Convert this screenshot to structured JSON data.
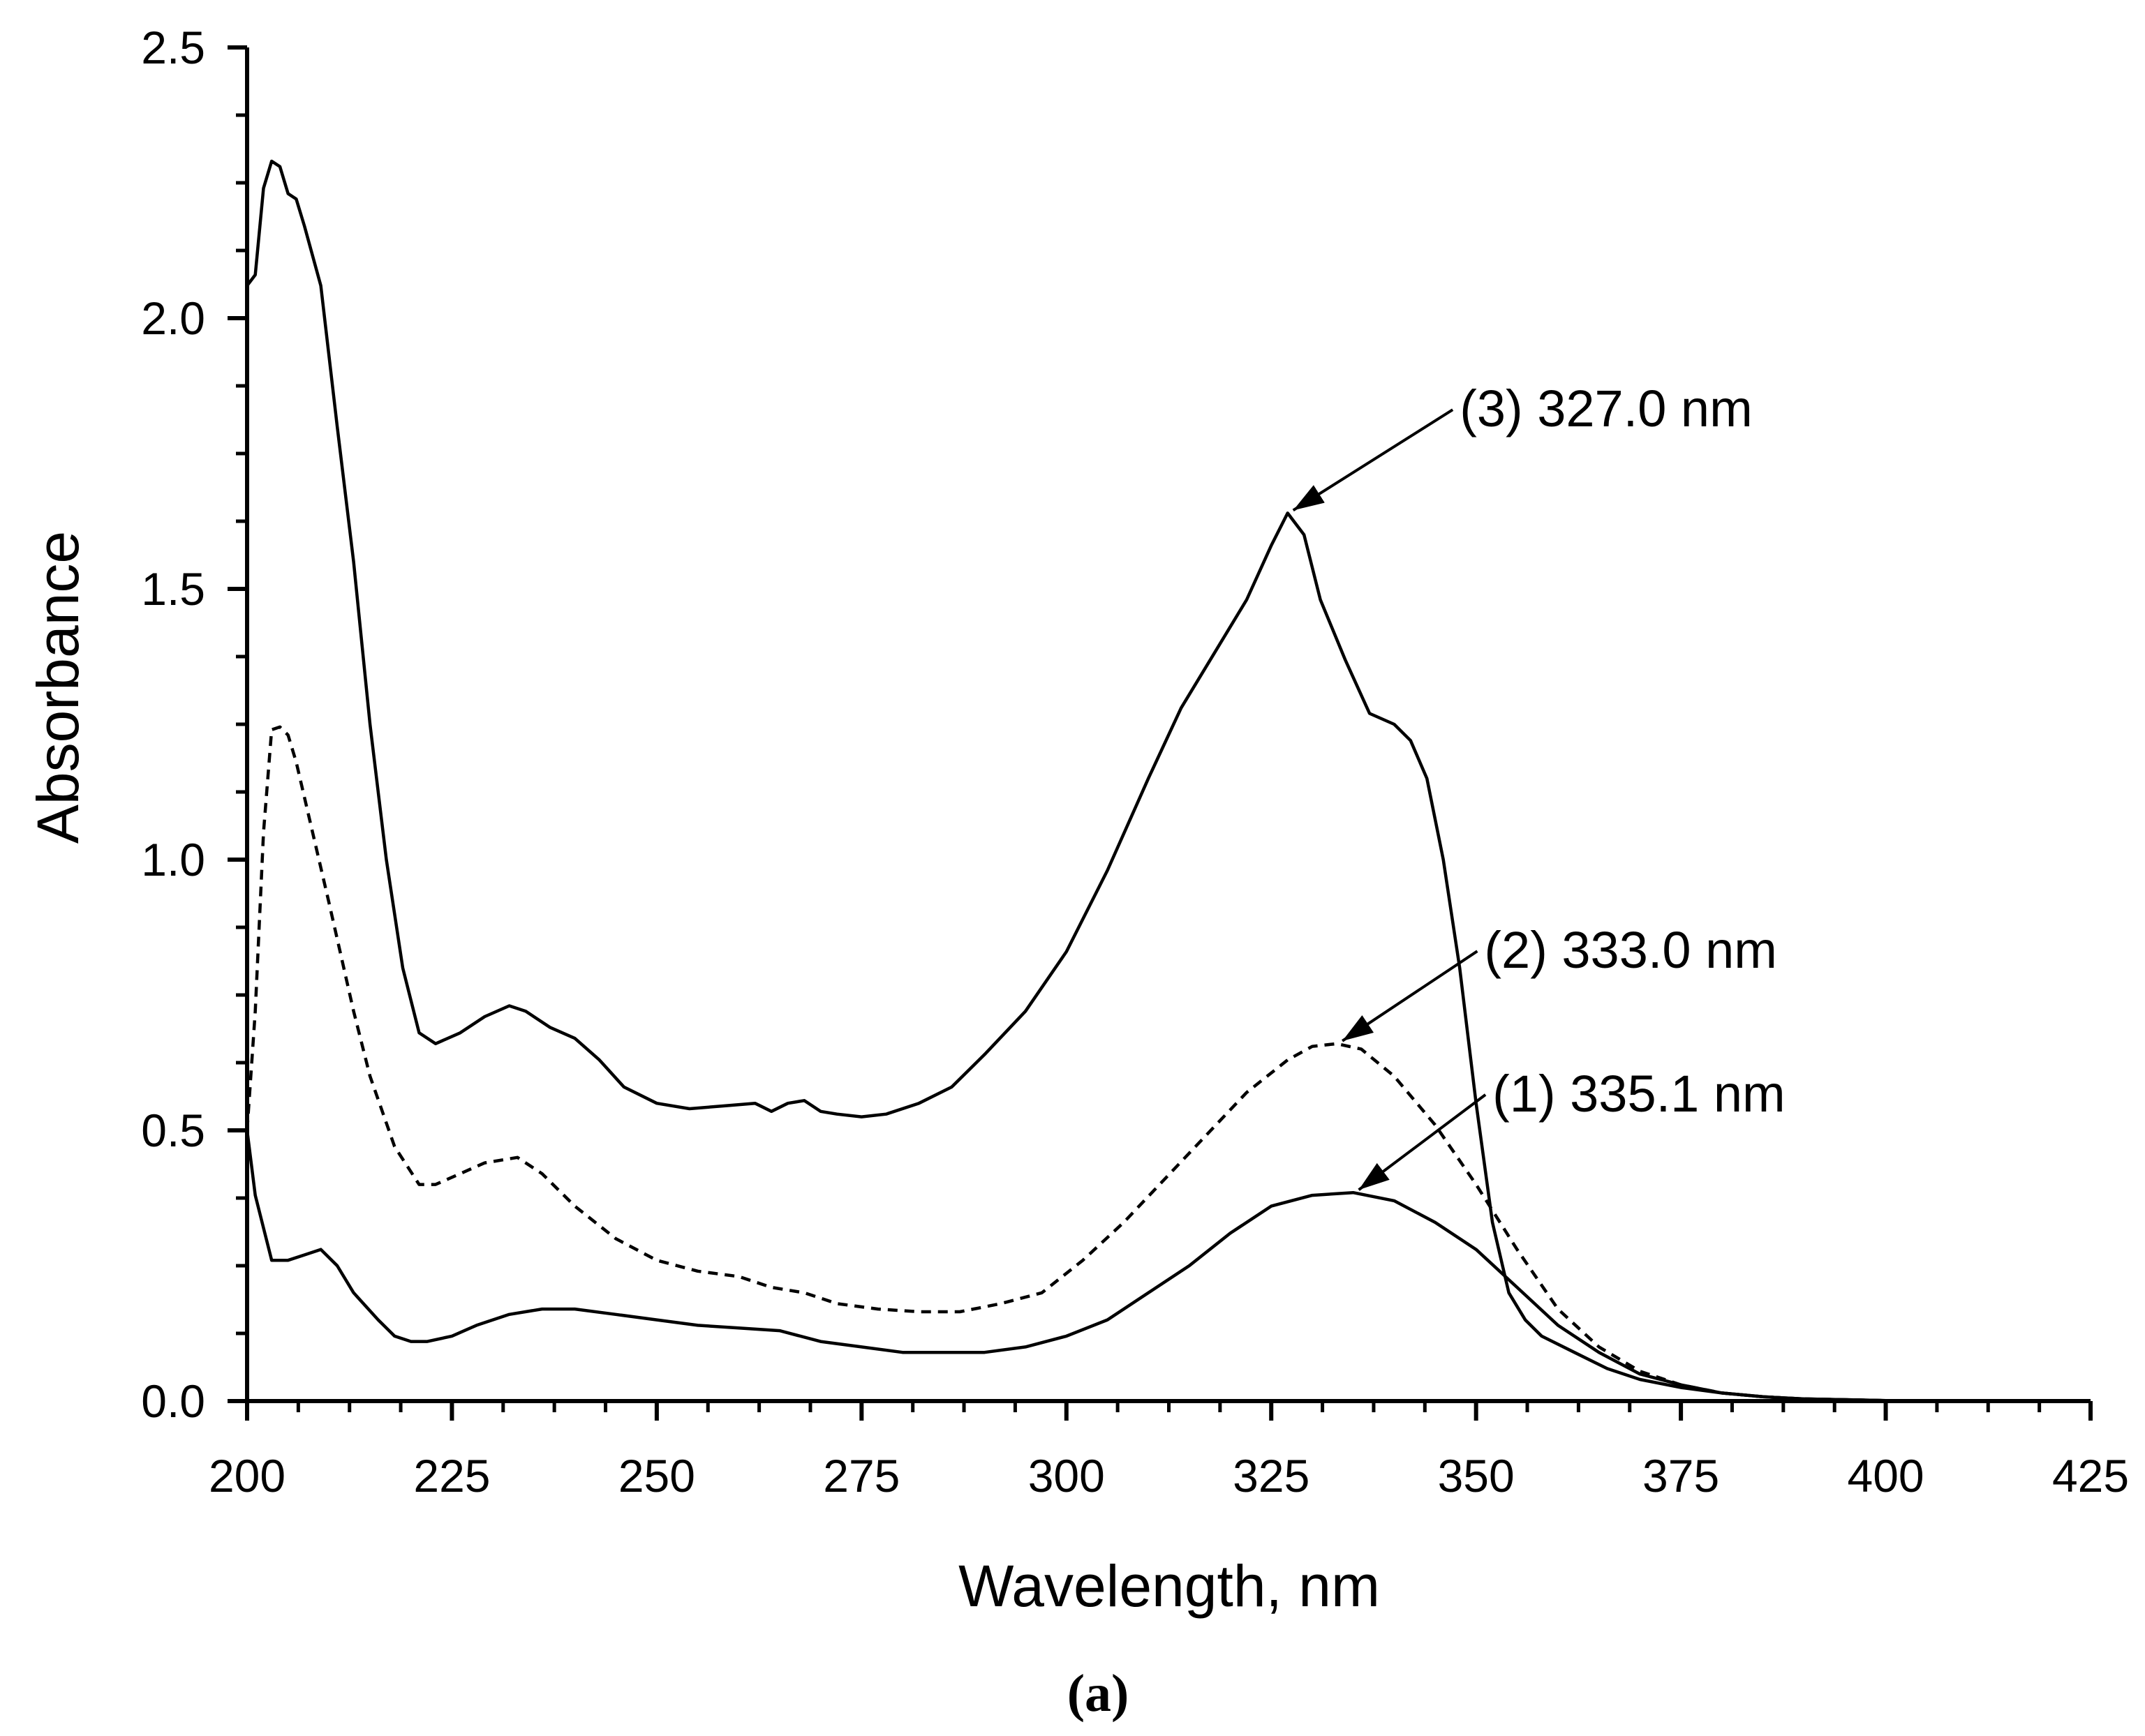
{
  "chart_data": {
    "type": "line",
    "title": "",
    "xlabel": "Wavelength, nm",
    "ylabel": "Absorbance",
    "xlim": [
      200,
      425
    ],
    "ylim": [
      0.0,
      2.5
    ],
    "x_ticks": [
      "200",
      "225",
      "250",
      "275",
      "300",
      "325",
      "350",
      "375",
      "400",
      "425"
    ],
    "y_ticks": [
      "0.0",
      "0.5",
      "1.0",
      "1.5",
      "2.0",
      "2.5"
    ],
    "grid": false,
    "legend": "none",
    "panel_label": "(a)",
    "series": [
      {
        "name": "(1)",
        "style": "solid",
        "x": [
          200,
          201,
          203,
          205,
          207,
          209,
          211,
          213,
          216,
          218,
          220,
          222,
          225,
          228,
          232,
          236,
          240,
          245,
          250,
          255,
          260,
          265,
          270,
          275,
          280,
          285,
          290,
          295,
          300,
          305,
          310,
          315,
          320,
          325,
          330,
          335,
          340,
          345,
          350,
          355,
          360,
          365,
          370,
          375,
          380,
          385,
          390,
          400,
          410,
          425
        ],
        "y": [
          0.5,
          0.38,
          0.26,
          0.26,
          0.27,
          0.28,
          0.25,
          0.2,
          0.15,
          0.12,
          0.11,
          0.11,
          0.12,
          0.14,
          0.16,
          0.17,
          0.17,
          0.16,
          0.15,
          0.14,
          0.135,
          0.13,
          0.11,
          0.1,
          0.09,
          0.09,
          0.09,
          0.1,
          0.12,
          0.15,
          0.2,
          0.25,
          0.31,
          0.36,
          0.38,
          0.385,
          0.37,
          0.33,
          0.28,
          0.21,
          0.14,
          0.09,
          0.05,
          0.03,
          0.015,
          0.008,
          0.004,
          0.001,
          0.0,
          0.0
        ]
      },
      {
        "name": "(2)",
        "style": "dashed",
        "x": [
          200,
          201,
          202,
          203,
          204,
          205,
          206,
          208,
          210,
          213,
          215,
          218,
          221,
          223,
          226,
          229,
          233,
          236,
          240,
          245,
          250,
          255,
          260,
          264,
          268,
          272,
          277,
          282,
          287,
          292,
          297,
          302,
          307,
          312,
          317,
          322,
          327,
          330,
          333,
          336,
          340,
          345,
          350,
          355,
          360,
          365,
          370,
          375,
          380,
          385,
          390,
          400,
          410,
          425
        ],
        "y": [
          0.5,
          0.72,
          1.05,
          1.24,
          1.245,
          1.23,
          1.18,
          1.05,
          0.92,
          0.72,
          0.6,
          0.47,
          0.4,
          0.4,
          0.42,
          0.44,
          0.45,
          0.42,
          0.36,
          0.3,
          0.26,
          0.24,
          0.23,
          0.21,
          0.2,
          0.18,
          0.17,
          0.165,
          0.165,
          0.18,
          0.2,
          0.26,
          0.33,
          0.41,
          0.49,
          0.57,
          0.63,
          0.655,
          0.66,
          0.65,
          0.6,
          0.51,
          0.4,
          0.28,
          0.17,
          0.1,
          0.055,
          0.03,
          0.015,
          0.008,
          0.004,
          0.001,
          0.0,
          0.0
        ]
      },
      {
        "name": "(3)",
        "style": "solid",
        "x": [
          200,
          201,
          202,
          203,
          204,
          205,
          206,
          207,
          209,
          211,
          213,
          215,
          217,
          219,
          221,
          223,
          226,
          229,
          232,
          234,
          237,
          240,
          243,
          246,
          250,
          254,
          258,
          262,
          264,
          266,
          268,
          270,
          272,
          275,
          278,
          282,
          286,
          290,
          295,
          300,
          305,
          310,
          314,
          318,
          322,
          325,
          327,
          329,
          331,
          334,
          337,
          340,
          342,
          344,
          346,
          348,
          350,
          352,
          354,
          356,
          358,
          362,
          366,
          370,
          375,
          380,
          385,
          390,
          400,
          410,
          425
        ],
        "y": [
          2.06,
          2.08,
          2.24,
          2.29,
          2.28,
          2.23,
          2.22,
          2.17,
          2.06,
          1.8,
          1.55,
          1.25,
          1.0,
          0.8,
          0.68,
          0.66,
          0.68,
          0.71,
          0.73,
          0.72,
          0.69,
          0.67,
          0.63,
          0.58,
          0.55,
          0.54,
          0.545,
          0.55,
          0.535,
          0.55,
          0.555,
          0.535,
          0.53,
          0.525,
          0.53,
          0.55,
          0.58,
          0.64,
          0.72,
          0.83,
          0.98,
          1.15,
          1.28,
          1.38,
          1.48,
          1.58,
          1.64,
          1.6,
          1.48,
          1.37,
          1.27,
          1.25,
          1.22,
          1.15,
          1.0,
          0.8,
          0.55,
          0.33,
          0.2,
          0.15,
          0.12,
          0.09,
          0.06,
          0.04,
          0.025,
          0.015,
          0.008,
          0.004,
          0.001,
          0.0,
          0.0
        ]
      }
    ],
    "annotations": [
      {
        "text": "(3) 327.0 nm",
        "series": "(3)",
        "point": [
          327,
          1.64
        ],
        "label_at": [
          348,
          1.8
        ]
      },
      {
        "text": "(2) 333.0 nm",
        "series": "(2)",
        "point": [
          333,
          0.66
        ],
        "label_at": [
          351,
          0.8
        ]
      },
      {
        "text": "(1) 335.1 nm",
        "series": "(1)",
        "point": [
          335,
          0.385
        ],
        "label_at": [
          352,
          0.535
        ]
      }
    ]
  }
}
